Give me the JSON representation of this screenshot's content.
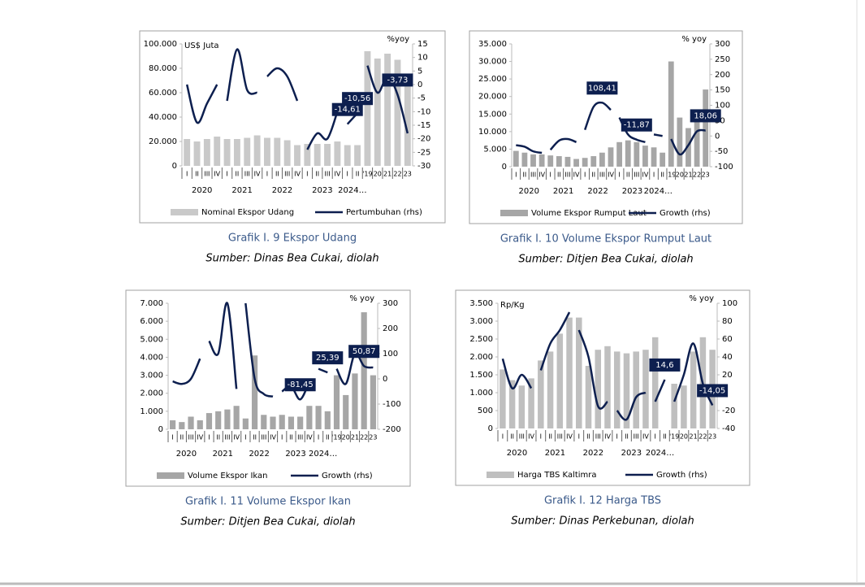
{
  "chart_data": [
    {
      "type": "combo",
      "title": "Grafik I. 9 Ekspor Udang",
      "source": "Sumber: Dinas Bea Cukai, diolah",
      "y_label": "US$ Juta",
      "y2_label": "%yoy",
      "groups": [
        {
          "label": "2020",
          "categories": [
            "I",
            "II",
            "III",
            "IV"
          ]
        },
        {
          "label": "2021",
          "categories": [
            "I",
            "II",
            "III",
            "IV"
          ]
        },
        {
          "label": "2022",
          "categories": [
            "I",
            "II",
            "III",
            "IV"
          ]
        },
        {
          "label": "2023",
          "categories": [
            "I",
            "II",
            "III",
            "IV"
          ]
        },
        {
          "label": "2024…",
          "categories": [
            "I",
            "II"
          ]
        },
        {
          "categories": [
            "'19",
            "20",
            "21",
            "22",
            "23"
          ]
        }
      ],
      "series": [
        {
          "name": "Nominal Ekspor Udang",
          "type": "bar",
          "color": "#c9c9c9",
          "values": [
            22000,
            20000,
            22000,
            24000,
            22000,
            22000,
            23000,
            25000,
            23000,
            23000,
            21000,
            17000,
            18000,
            18000,
            18000,
            20000,
            17000,
            17000,
            94000,
            88000,
            92000,
            87000,
            71000
          ]
        },
        {
          "name": "Pertumbuhan (rhs)",
          "type": "line",
          "axis": "y2",
          "color": "#0d1f4f",
          "values": [
            0,
            -14,
            -7,
            0,
            -6,
            13,
            -2,
            -3,
            3,
            6,
            3,
            -6,
            -24,
            -18,
            -20,
            -10,
            -14.61,
            -10.56,
            7,
            -3,
            3,
            -3.73,
            -18
          ],
          "value_labels": [
            null,
            null,
            null,
            null,
            null,
            null,
            null,
            null,
            null,
            null,
            null,
            null,
            null,
            null,
            null,
            null,
            "-14,61",
            "-10,56",
            null,
            null,
            null,
            "-3,73",
            null
          ]
        }
      ],
      "ylim": [
        0,
        100000
      ],
      "yticks": [
        0,
        {
          "value": 20000,
          "label": "20.000"
        },
        {
          "value": 40000,
          "label": "40.000"
        },
        {
          "value": 60000,
          "label": "60.000"
        },
        {
          "value": 80000,
          "label": "80.000"
        },
        {
          "value": 100000,
          "label": "100.000"
        }
      ],
      "y2lim": [
        -30,
        15
      ],
      "y2ticks": [
        -30,
        -25,
        -20,
        -15,
        -10,
        -5,
        0,
        5,
        10,
        15
      ]
    },
    {
      "type": "combo",
      "title": "Grafik I. 10 Volume Ekspor Rumput Laut",
      "source": "Sumber: Ditjen Bea Cukai, diolah",
      "y2_label": "% yoy",
      "groups": [
        {
          "label": "2020",
          "categories": [
            "I",
            "II",
            "III",
            "IV"
          ]
        },
        {
          "label": "2021",
          "categories": [
            "I",
            "II",
            "III",
            "IV"
          ]
        },
        {
          "label": "2022",
          "categories": [
            "I",
            "II",
            "III",
            "IV"
          ]
        },
        {
          "label": "2023",
          "categories": [
            "I",
            "II",
            "III",
            "IV"
          ]
        },
        {
          "label": "2024…",
          "categories": [
            "I",
            "II"
          ]
        },
        {
          "categories": [
            "'19",
            "20",
            "21",
            "22",
            "23"
          ]
        }
      ],
      "series": [
        {
          "name": "Volume Ekspor Rumput Laut",
          "type": "bar",
          "color": "#a6a6a6",
          "values": [
            4500,
            4000,
            3500,
            3500,
            3200,
            3000,
            2800,
            2200,
            2500,
            3000,
            4000,
            5500,
            7000,
            7500,
            7000,
            6000,
            5500,
            4000,
            30000,
            14000,
            11000,
            13000,
            22000
          ]
        },
        {
          "name": "Growth (rhs)",
          "type": "line",
          "axis": "y2",
          "color": "#0d1f4f",
          "values": [
            -30,
            -35,
            -50,
            -55,
            -45,
            -15,
            -10,
            -20,
            20,
            95,
            108.41,
            85,
            60,
            5,
            -11.87,
            -20,
            5,
            0,
            -10,
            -60,
            -30,
            15,
            18.06
          ],
          "value_labels": [
            null,
            null,
            null,
            null,
            null,
            null,
            null,
            null,
            null,
            null,
            "108,41",
            null,
            null,
            null,
            "-11,87",
            null,
            null,
            null,
            null,
            null,
            null,
            null,
            "18,06"
          ]
        }
      ],
      "ylim": [
        0,
        35000
      ],
      "yticks": [
        0,
        {
          "value": 5000,
          "label": "5.000"
        },
        {
          "value": 10000,
          "label": "10.000"
        },
        {
          "value": 15000,
          "label": "15.000"
        },
        {
          "value": 20000,
          "label": "20.000"
        },
        {
          "value": 25000,
          "label": "25.000"
        },
        {
          "value": 30000,
          "label": "30.000"
        },
        {
          "value": 35000,
          "label": "35.000"
        }
      ],
      "y2lim": [
        -100,
        300
      ],
      "y2ticks": [
        -100,
        -50,
        0,
        50,
        100,
        150,
        200,
        250,
        300
      ]
    },
    {
      "type": "combo",
      "title": "Grafik I. 11 Volume Ekspor Ikan",
      "source": "Sumber: Ditjen Bea Cukai, diolah",
      "y2_label": "% yoy",
      "groups": [
        {
          "label": "2020",
          "categories": [
            "I",
            "II",
            "III",
            "IV"
          ]
        },
        {
          "label": "2021",
          "categories": [
            "I",
            "II",
            "III",
            "IV"
          ]
        },
        {
          "label": "2022",
          "categories": [
            "I",
            "II",
            "III",
            "IV"
          ]
        },
        {
          "label": "2023",
          "categories": [
            "I",
            "II",
            "III",
            "IV"
          ]
        },
        {
          "label": "2024…",
          "categories": [
            "I",
            "II"
          ]
        },
        {
          "categories": [
            "'19",
            "20",
            "21",
            "22",
            "23"
          ]
        }
      ],
      "series": [
        {
          "name": "Volume Ekspor Ikan",
          "type": "bar",
          "color": "#a6a6a6",
          "values": [
            500,
            400,
            700,
            500,
            900,
            1000,
            1100,
            1300,
            600,
            4100,
            800,
            700,
            800,
            700,
            700,
            1300,
            1300,
            1000,
            3000,
            1900,
            3100,
            6500,
            3000
          ]
        },
        {
          "name": "Growth (rhs)",
          "type": "line",
          "axis": "y2",
          "color": "#0d1f4f",
          "values": [
            -10,
            -20,
            0,
            80,
            150,
            100,
            300,
            -40,
            300,
            0,
            -60,
            -70,
            -50,
            -30,
            -81.45,
            -10,
            40,
            25.39,
            40,
            -20,
            100,
            50.87,
            45
          ],
          "value_labels": [
            null,
            null,
            null,
            null,
            null,
            null,
            null,
            null,
            null,
            null,
            null,
            null,
            null,
            null,
            "-81,45",
            null,
            null,
            "25,39",
            null,
            null,
            null,
            "50,87",
            null
          ]
        }
      ],
      "ylim": [
        0,
        7000
      ],
      "yticks": [
        0,
        {
          "value": 1000,
          "label": "1.000"
        },
        {
          "value": 2000,
          "label": "2.000"
        },
        {
          "value": 3000,
          "label": "3.000"
        },
        {
          "value": 4000,
          "label": "4.000"
        },
        {
          "value": 5000,
          "label": "5.000"
        },
        {
          "value": 6000,
          "label": "6.000"
        },
        {
          "value": 7000,
          "label": "7.000"
        }
      ],
      "y2lim": [
        -200,
        300
      ],
      "y2ticks": [
        -200,
        -100,
        0,
        100,
        200,
        300
      ]
    },
    {
      "type": "combo",
      "title": "Grafik I. 12 Harga TBS",
      "source": "Sumber: Dinas Perkebunan, diolah",
      "y_label": "Rp/Kg",
      "y2_label": "% yoy",
      "groups": [
        {
          "label": "2020",
          "categories": [
            "I",
            "II",
            "III",
            "IV"
          ]
        },
        {
          "label": "2021",
          "categories": [
            "I",
            "II",
            "III",
            "IV"
          ]
        },
        {
          "label": "2022",
          "categories": [
            "I",
            "II",
            "III",
            "IV"
          ]
        },
        {
          "label": "2023",
          "categories": [
            "I",
            "II",
            "III",
            "IV"
          ]
        },
        {
          "label": "2024…",
          "categories": [
            "I",
            "II"
          ]
        },
        {
          "categories": [
            "'19",
            "20",
            "21",
            "22",
            "23"
          ]
        }
      ],
      "series": [
        {
          "name": "Harga TBS Kaltimra",
          "type": "bar",
          "color": "#bfbfbf",
          "values": [
            1650,
            1350,
            1200,
            1400,
            1900,
            2150,
            2650,
            3100,
            3100,
            1750,
            2200,
            2300,
            2150,
            2100,
            2150,
            2200,
            2550,
            null,
            1250,
            1200,
            2150,
            2550,
            2200
          ]
        },
        {
          "name": "Growth (rhs)",
          "type": "line",
          "axis": "y2",
          "color": "#0d1f4f",
          "values": [
            38,
            5,
            20,
            5,
            25,
            55,
            70,
            90,
            70,
            40,
            -15,
            -10,
            -20,
            -30,
            -5,
            0,
            -10,
            14.6,
            -10,
            20,
            55,
            10,
            -14.05
          ],
          "value_labels": [
            null,
            null,
            null,
            null,
            null,
            null,
            null,
            null,
            null,
            null,
            null,
            null,
            null,
            null,
            null,
            null,
            null,
            "14,6",
            null,
            null,
            null,
            null,
            "-14,05"
          ]
        }
      ],
      "ylim": [
        0,
        3500
      ],
      "yticks": [
        0,
        500,
        {
          "value": 1000,
          "label": "1.000"
        },
        {
          "value": 1500,
          "label": "1.500"
        },
        {
          "value": 2000,
          "label": "2.000"
        },
        {
          "value": 2500,
          "label": "2.500"
        },
        {
          "value": 3000,
          "label": "3.000"
        },
        {
          "value": 3500,
          "label": "3.500"
        }
      ],
      "y2lim": [
        -40,
        100
      ],
      "y2ticks": [
        -40,
        -20,
        0,
        20,
        40,
        60,
        80,
        100
      ]
    }
  ]
}
